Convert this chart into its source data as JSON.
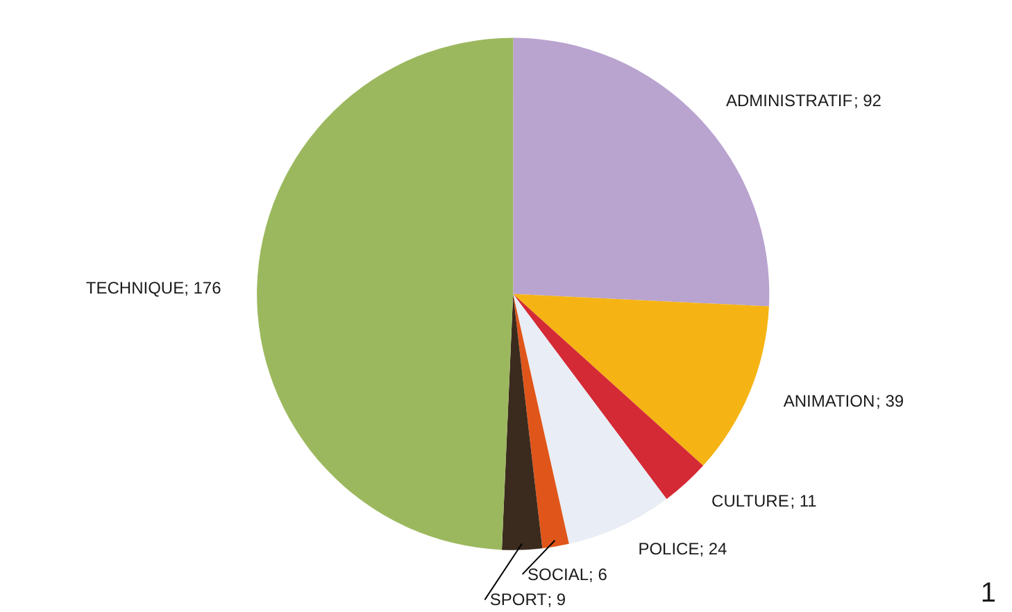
{
  "chart_data": {
    "type": "pie",
    "categories": [
      "ADMINISTRATIF",
      "ANIMATION",
      "CULTURE",
      "POLICE",
      "SOCIAL",
      "SPORT",
      "TECHNIQUE"
    ],
    "values": [
      92,
      39,
      11,
      24,
      6,
      9,
      176
    ],
    "colors": [
      "#b9a3cf",
      "#f5b414",
      "#d42a35",
      "#e9edf5",
      "#e0561a",
      "#3b2a1e",
      "#9cb85e"
    ],
    "data_labels": true,
    "value_labels": [
      "; 92",
      "; 39",
      "; 11",
      "; 24",
      "; 6",
      "; 9",
      "; 176"
    ],
    "legend": false,
    "annotations": [
      "1"
    ]
  }
}
